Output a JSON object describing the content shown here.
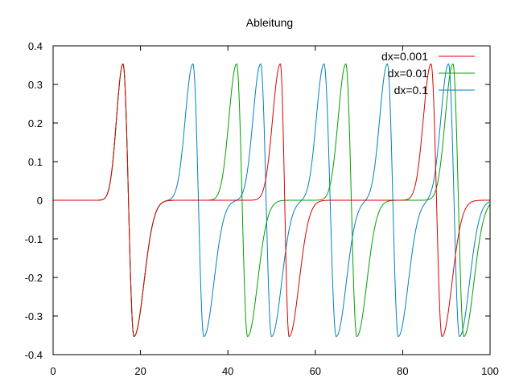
{
  "chart_data": {
    "type": "line",
    "title": "Ableitung",
    "xlabel": "",
    "ylabel": "",
    "xlim": [
      0,
      100
    ],
    "ylim": [
      -0.4,
      0.4
    ],
    "xticks": [
      0,
      20,
      40,
      60,
      80,
      100
    ],
    "yticks": [
      -0.4,
      -0.3,
      -0.2,
      -0.1,
      0,
      0.1,
      0.2,
      0.3,
      0.4
    ],
    "xtick_labels": [
      "0",
      "20",
      "40",
      "60",
      "80",
      "100"
    ],
    "ytick_labels": [
      "-0.4",
      "-0.3",
      "-0.2",
      "-0.1",
      "0",
      "0.1",
      "0.2",
      "0.3",
      "0.4"
    ],
    "grid": false,
    "legend_position": "top-right",
    "peak_value": 0.353,
    "trough_value": -0.353,
    "series": [
      {
        "name": "dx=0.001",
        "color": "#dd0000",
        "peaks": [
          16.0,
          52.0,
          86.5
        ],
        "troughs": [
          18.5,
          54.0,
          89.0
        ]
      },
      {
        "name": "dx=0.01",
        "color": "#00a000",
        "peaks": [
          16.0,
          42.0,
          67.0,
          91.5
        ],
        "troughs": [
          18.5,
          44.5,
          69.5,
          94.0
        ]
      },
      {
        "name": "dx=0.1",
        "color": "#0080c0",
        "peaks": [
          16.0,
          32.0,
          47.5,
          62.0,
          76.5,
          90.5
        ],
        "troughs": [
          18.5,
          34.5,
          50.0,
          64.8,
          79.0,
          93.0
        ]
      }
    ]
  }
}
